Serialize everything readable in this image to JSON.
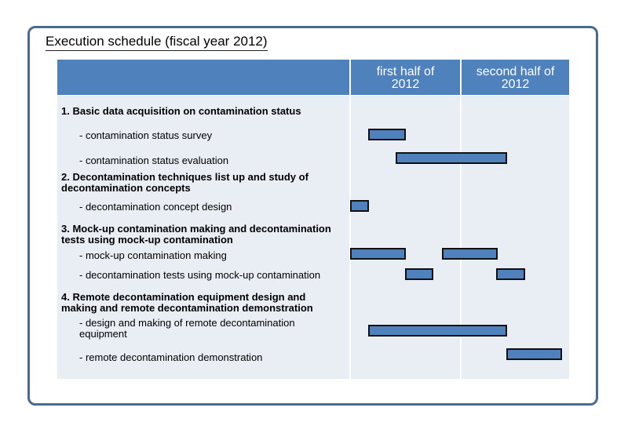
{
  "title": "Execution schedule (fiscal year 2012)",
  "header": {
    "col1_line1": "first half of",
    "col1_line2": "2012",
    "col2_line1": "second half of",
    "col2_line2": "2012"
  },
  "rows": {
    "s1": "1. Basic data acquisition on contamination status",
    "t1a": "- contamination status survey",
    "t1b": "- contamination status evaluation",
    "s2_l1": "2. Decontamination techniques list up and study of",
    "s2_l2": "decontamination concepts",
    "t2a": "- decontamination concept design",
    "s3_l1": "3. Mock-up contamination making and decontamination",
    "s3_l2": "tests using mock-up contamination",
    "t3a": "- mock-up contamination making",
    "t3b": "- decontamination tests using mock-up contamination",
    "s4_l1": "4. Remote decontamination equipment design and",
    "s4_l2": "making and remote decontamination demonstration",
    "t4a_l1": "- design and making of remote decontamination",
    "t4a_l2": "equipment",
    "t4b": "- remote decontamination demonstration"
  },
  "colors": {
    "header_fill": "#4f81bd",
    "body_fill": "#e9edf4",
    "frame": "#4a6b8c",
    "bar_fill": "#4f81bd"
  }
}
